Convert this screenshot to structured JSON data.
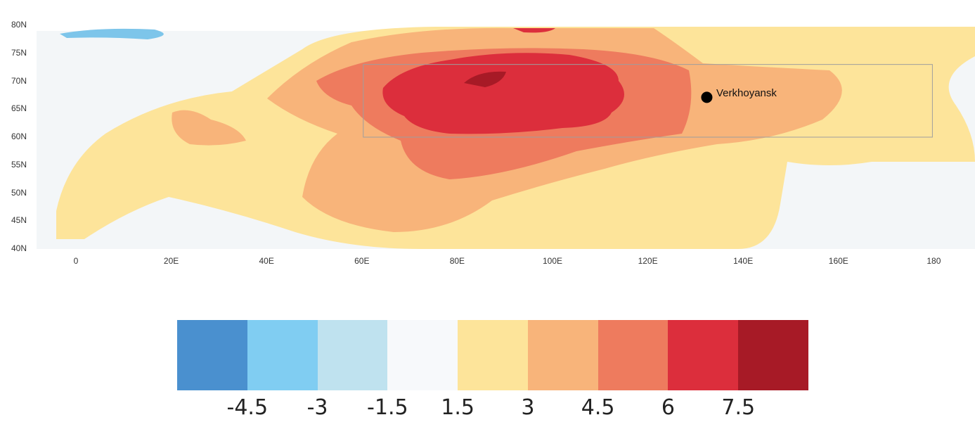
{
  "map": {
    "lat_labels": [
      "80N",
      "75N",
      "70N",
      "65N",
      "60N",
      "55N",
      "50N",
      "45N",
      "40N"
    ],
    "lon_labels": [
      "0",
      "20E",
      "40E",
      "60E",
      "80E",
      "100E",
      "120E",
      "140E",
      "160E",
      "180"
    ],
    "region_box": {
      "lon_range": [
        60,
        180
      ],
      "lat_range": [
        60,
        73
      ]
    },
    "city": {
      "name": "Verkhoyansk",
      "lon": 133.4,
      "lat": 67.5
    }
  },
  "colorbar": {
    "colors": [
      "#4a90cf",
      "#80cdf2",
      "#bfe2ef",
      "#f7f9fb",
      "#fde49a",
      "#f8b47a",
      "#ee7b5e",
      "#dc2e3c",
      "#a71a26"
    ],
    "ticks": [
      "-4.5",
      "-3",
      "-1.5",
      "1.5",
      "3",
      "4.5",
      "6",
      "7.5"
    ]
  },
  "palette": {
    "land_base": "#f3f6f8",
    "ocean": "#ffffff",
    "coast": "#c7ccd1"
  }
}
